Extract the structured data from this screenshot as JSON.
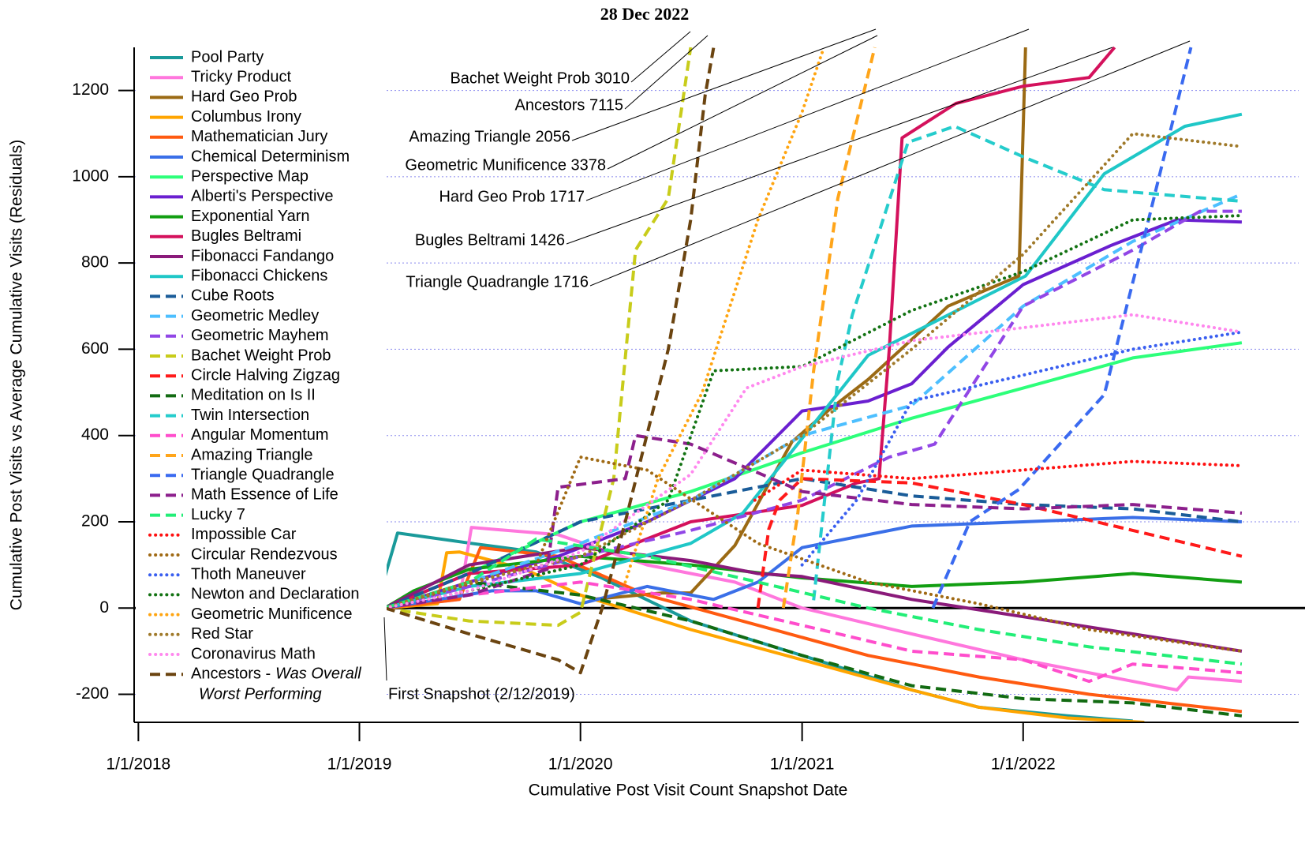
{
  "chart_data": {
    "type": "line",
    "title": "28 Dec 2022",
    "x_label": "Cumulative Post Visit Count Snapshot Date",
    "y_label": "Cumulative Post Visits vs Average Cumulative Visits (Residuals)",
    "xlim": [
      "2017-12-25",
      "2023-04-01"
    ],
    "ylim": [
      -265,
      1300
    ],
    "xticks": [
      {
        "value": "2018-01-01",
        "label": "1/1/2018"
      },
      {
        "value": "2019-01-01",
        "label": "1/1/2019"
      },
      {
        "value": "2020-01-01",
        "label": "1/1/2020"
      },
      {
        "value": "2021-01-01",
        "label": "1/1/2021"
      },
      {
        "value": "2022-01-01",
        "label": "1/1/2022"
      }
    ],
    "yticks": [
      -200,
      0,
      200,
      400,
      600,
      800,
      1000,
      1200
    ],
    "grid": true,
    "grid_color": "#8888ee",
    "legend": "upper left",
    "annotations": [
      {
        "text": "Bachet Weight Prob 3010"
      },
      {
        "text": "Ancestors 7115"
      },
      {
        "text": "Amazing Triangle 2056"
      },
      {
        "text": "Geometric Munificence 3378"
      },
      {
        "text": "Hard Geo Prob 1717"
      },
      {
        "text": "Bugles Beltrami 1426"
      },
      {
        "text": "Triangle Quadrangle 1716"
      },
      {
        "text": "First Snapshot (2/12/2019)"
      }
    ],
    "series": [
      {
        "name": "Pool Party",
        "color": "#1a9a9a",
        "dash": "solid",
        "x": [
          "2019-02-12",
          "2019-03-05",
          "2019-04-20",
          "2019-07-05",
          "2019-10-20",
          "2020-02-05",
          "2020-07-01",
          "2021-01-01",
          "2021-07-01",
          "2021-10-20",
          "2022-03-15",
          "2022-07-01"
        ],
        "values": [
          73,
          174,
          165,
          150,
          130,
          70,
          -30,
          -110,
          -190,
          -230,
          -250,
          -262
        ]
      },
      {
        "name": "Tricky Product",
        "color": "#ff77dd",
        "dash": "solid",
        "x": [
          "2019-02-12",
          "2019-06-15",
          "2019-07-05",
          "2019-11-25",
          "2020-04-20",
          "2020-09-12",
          "2021-01-01",
          "2021-07-01",
          "2022-01-01",
          "2022-07-01",
          "2022-09-12",
          "2022-10-01",
          "2022-12-28"
        ],
        "values": [
          0,
          20,
          187,
          170,
          100,
          60,
          0,
          -60,
          -120,
          -170,
          -190,
          -160,
          -170
        ]
      },
      {
        "name": "Hard Geo Prob",
        "color": "#9b6a14",
        "dash": "solid",
        "x": [
          "2020-01-20",
          "2020-05-15",
          "2020-07-01",
          "2020-09-12",
          "2020-12-15",
          "2021-02-15",
          "2021-04-20",
          "2021-08-30",
          "2021-12-25",
          "2022-01-05"
        ],
        "values": [
          20,
          35,
          35,
          145,
          385,
          460,
          530,
          700,
          770,
          1300
        ]
      },
      {
        "name": "Columbus Irony",
        "color": "#ffa500",
        "dash": "solid",
        "x": [
          "2019-02-12",
          "2019-05-10",
          "2019-05-25",
          "2019-06-15",
          "2019-10-01",
          "2020-01-01",
          "2020-07-01",
          "2021-01-01",
          "2021-07-01",
          "2021-10-20",
          "2022-03-15",
          "2022-07-20"
        ],
        "values": [
          0,
          10,
          128,
          130,
          90,
          30,
          -50,
          -120,
          -190,
          -230,
          -255,
          -265
        ]
      },
      {
        "name": "Mathematician Jury",
        "color": "#ff5a10",
        "dash": "solid",
        "x": [
          "2019-02-12",
          "2019-06-15",
          "2019-07-20",
          "2019-11-25",
          "2020-04-20",
          "2020-10-20",
          "2021-04-20",
          "2021-10-20",
          "2022-04-20",
          "2022-12-28"
        ],
        "values": [
          0,
          20,
          140,
          120,
          30,
          -40,
          -110,
          -160,
          -200,
          -240
        ]
      },
      {
        "name": "Chemical Determinism",
        "color": "#3a6fe8",
        "dash": "solid",
        "x": [
          "2019-02-12",
          "2019-08-08",
          "2019-10-20",
          "2020-01-01",
          "2020-04-20",
          "2020-08-08",
          "2020-10-20",
          "2021-01-01",
          "2021-07-01",
          "2022-01-01",
          "2022-07-01",
          "2022-12-28"
        ],
        "values": [
          0,
          40,
          40,
          10,
          50,
          20,
          60,
          140,
          190,
          200,
          210,
          200
        ]
      },
      {
        "name": "Perspective Map",
        "color": "#2dff7a",
        "dash": "solid",
        "x": [
          "2019-02-12",
          "2019-07-01",
          "2020-01-01",
          "2020-07-01",
          "2021-01-01",
          "2021-07-01",
          "2022-01-01",
          "2022-07-01",
          "2022-12-28"
        ],
        "values": [
          0,
          80,
          200,
          270,
          360,
          440,
          510,
          580,
          615
        ]
      },
      {
        "name": "Alberti's Perspective",
        "color": "#6a1fd0",
        "dash": "solid",
        "x": [
          "2019-02-12",
          "2019-07-01",
          "2019-11-25",
          "2020-04-20",
          "2020-09-12",
          "2021-01-01",
          "2021-04-20",
          "2021-07-01",
          "2021-08-30",
          "2022-01-01",
          "2022-05-25",
          "2022-09-12",
          "2022-12-28"
        ],
        "values": [
          0,
          60,
          120,
          200,
          300,
          457,
          480,
          520,
          605,
          750,
          840,
          900,
          895
        ]
      },
      {
        "name": "Exponential Yarn",
        "color": "#129e12",
        "dash": "solid",
        "x": [
          "2019-02-12",
          "2019-04-01",
          "2019-07-01",
          "2020-01-01",
          "2020-07-01",
          "2021-01-01",
          "2021-07-01",
          "2022-01-01",
          "2022-07-01",
          "2022-12-28"
        ],
        "values": [
          0,
          40,
          90,
          120,
          100,
          70,
          50,
          60,
          80,
          60
        ]
      },
      {
        "name": "Bugles Beltrami",
        "color": "#d4115c",
        "dash": "solid",
        "x": [
          "2019-02-12",
          "2019-07-01",
          "2020-01-01",
          "2020-07-01",
          "2021-01-01",
          "2021-04-01",
          "2021-05-08",
          "2021-05-25",
          "2021-06-15",
          "2021-09-12",
          "2022-01-01",
          "2022-04-20",
          "2022-06-01"
        ],
        "values": [
          0,
          80,
          100,
          200,
          238,
          290,
          300,
          600,
          1090,
          1170,
          1210,
          1230,
          1300
        ]
      },
      {
        "name": "Fibonacci Fandango",
        "color": "#8a1a7a",
        "dash": "solid",
        "x": [
          "2019-02-12",
          "2019-07-01",
          "2020-01-01",
          "2020-07-01",
          "2020-10-20",
          "2021-01-01",
          "2021-07-01",
          "2022-01-01",
          "2022-07-01",
          "2022-12-28"
        ],
        "values": [
          0,
          100,
          140,
          110,
          80,
          73,
          20,
          -20,
          -60,
          -100
        ]
      },
      {
        "name": "Fibonacci Chickens",
        "color": "#1fc7c7",
        "dash": "solid",
        "x": [
          "2019-02-12",
          "2019-07-01",
          "2020-01-01",
          "2020-07-01",
          "2020-09-25",
          "2021-04-20",
          "2022-01-05",
          "2022-05-15",
          "2022-09-25",
          "2022-12-28"
        ],
        "values": [
          0,
          50,
          80,
          150,
          220,
          586,
          770,
          1007,
          1117,
          1145
        ]
      },
      {
        "name": "Cube Roots",
        "color": "#1a5c99",
        "dash": "dashed",
        "x": [
          "2019-02-12",
          "2019-07-01",
          "2020-01-01",
          "2020-07-01",
          "2021-01-01",
          "2021-07-01",
          "2022-01-01",
          "2022-07-01",
          "2022-12-28"
        ],
        "values": [
          0,
          80,
          200,
          250,
          300,
          260,
          240,
          230,
          200
        ]
      },
      {
        "name": "Geometric Medley",
        "color": "#4dbfff",
        "dash": "dashed",
        "x": [
          "2019-02-12",
          "2019-07-01",
          "2020-01-01",
          "2020-07-01",
          "2021-01-01",
          "2021-07-01",
          "2022-01-01",
          "2022-07-01",
          "2022-12-28"
        ],
        "values": [
          0,
          60,
          150,
          250,
          400,
          470,
          700,
          850,
          960
        ]
      },
      {
        "name": "Geometric Mayhem",
        "color": "#9146e6",
        "dash": "dashed",
        "x": [
          "2019-02-12",
          "2019-07-01",
          "2020-01-01",
          "2020-07-01",
          "2021-01-01",
          "2021-05-25",
          "2021-08-08",
          "2021-10-20",
          "2022-01-01",
          "2022-07-01",
          "2022-10-20",
          "2022-12-28"
        ],
        "values": [
          0,
          50,
          120,
          180,
          250,
          350,
          380,
          540,
          700,
          830,
          920,
          920
        ]
      },
      {
        "name": "Bachet Weight Prob",
        "color": "#c8cc1a",
        "dash": "dashed",
        "x": [
          "2019-02-12",
          "2019-07-01",
          "2019-11-25",
          "2020-01-01",
          "2020-02-25",
          "2020-04-01",
          "2020-05-25",
          "2020-07-01"
        ],
        "values": [
          0,
          -30,
          -40,
          -10,
          300,
          830,
          950,
          1300
        ]
      },
      {
        "name": "Circle Halving Zigzag",
        "color": "#ff1a1a",
        "dash": "dashed",
        "x": [
          "2020-10-20",
          "2020-11-07",
          "2020-11-25",
          "2021-01-01",
          "2021-07-01",
          "2022-01-01",
          "2022-07-01",
          "2022-12-28"
        ],
        "values": [
          0,
          183,
          250,
          300,
          290,
          240,
          180,
          120
        ]
      },
      {
        "name": "Meditation on Is II",
        "color": "#126b12",
        "dash": "dashed",
        "x": [
          "2019-02-12",
          "2019-07-01",
          "2020-01-01",
          "2020-07-01",
          "2021-01-01",
          "2021-07-01",
          "2022-01-01",
          "2022-07-01",
          "2022-12-28"
        ],
        "values": [
          0,
          60,
          30,
          -30,
          -110,
          -180,
          -210,
          -220,
          -250
        ]
      },
      {
        "name": "Twin Intersection",
        "color": "#25cccc",
        "dash": "dashed",
        "x": [
          "2021-01-20",
          "2021-03-01",
          "2021-03-25",
          "2021-06-25",
          "2021-09-10",
          "2022-01-05",
          "2022-05-15",
          "2022-12-28"
        ],
        "values": [
          18,
          530,
          680,
          1080,
          1117,
          1044,
          970,
          943
        ]
      },
      {
        "name": "Angular Momentum",
        "color": "#ff4dcc",
        "dash": "dashed",
        "x": [
          "2019-02-12",
          "2019-07-01",
          "2020-01-01",
          "2020-07-01",
          "2021-01-01",
          "2021-07-01",
          "2022-01-01",
          "2022-04-20",
          "2022-07-01",
          "2022-12-28"
        ],
        "values": [
          0,
          30,
          60,
          20,
          -40,
          -100,
          -120,
          -170,
          -130,
          -150
        ]
      },
      {
        "name": "Amazing Triangle",
        "color": "#ffa51a",
        "dash": "dashed",
        "x": [
          "2020-12-01",
          "2020-12-25",
          "2021-01-20",
          "2021-03-01",
          "2021-05-01"
        ],
        "values": [
          0,
          220,
          550,
          950,
          1300
        ]
      },
      {
        "name": "Triangle Quadrangle",
        "color": "#3a6af0",
        "dash": "dashed",
        "x": [
          "2021-08-05",
          "2021-10-05",
          "2021-12-25",
          "2022-05-15",
          "2022-07-20",
          "2022-10-05"
        ],
        "values": [
          0,
          200,
          275,
          495,
          860,
          1300
        ]
      },
      {
        "name": "Math Essence of Life",
        "color": "#8c1f8c",
        "dash": "dashed",
        "x": [
          "2019-02-12",
          "2019-07-01",
          "2019-11-07",
          "2019-11-25",
          "2020-03-15",
          "2020-04-01",
          "2020-07-01",
          "2021-01-01",
          "2021-07-01",
          "2022-01-01",
          "2022-07-01",
          "2022-12-28"
        ],
        "values": [
          0,
          30,
          90,
          280,
          300,
          400,
          380,
          270,
          240,
          230,
          240,
          220
        ]
      },
      {
        "name": "Lucky 7",
        "color": "#22ee77",
        "dash": "dashed",
        "x": [
          "2019-02-12",
          "2019-07-01",
          "2019-10-20",
          "2020-04-20",
          "2020-10-20",
          "2021-04-20",
          "2021-10-20",
          "2022-04-20",
          "2022-12-28"
        ],
        "values": [
          0,
          60,
          160,
          120,
          60,
          0,
          -50,
          -90,
          -130
        ]
      },
      {
        "name": "Impossible Car",
        "color": "#ff1111",
        "dash": "dotted",
        "x": [
          "2020-10-15",
          "2021-01-01",
          "2021-07-01",
          "2022-01-01",
          "2022-07-01",
          "2022-12-28"
        ],
        "values": [
          250,
          320,
          300,
          320,
          340,
          330
        ]
      },
      {
        "name": "Circular Rendezvous",
        "color": "#a06a14",
        "dash": "dotted",
        "x": [
          "2019-02-12",
          "2019-10-20",
          "2020-01-01",
          "2020-04-20",
          "2020-10-20",
          "2021-04-20",
          "2021-10-20",
          "2022-04-20",
          "2022-12-28"
        ],
        "values": [
          0,
          100,
          350,
          320,
          150,
          60,
          10,
          -50,
          -100
        ]
      },
      {
        "name": "Thoth Maneuver",
        "color": "#3a5ff0",
        "dash": "dotted",
        "x": [
          "2021-01-01",
          "2021-04-01",
          "2021-07-01",
          "2022-01-01",
          "2022-07-01",
          "2022-12-28"
        ],
        "values": [
          100,
          250,
          480,
          540,
          600,
          640
        ]
      },
      {
        "name": "Newton and Declaration",
        "color": "#137313",
        "dash": "dotted",
        "x": [
          "2019-02-12",
          "2019-07-01",
          "2020-01-01",
          "2020-05-25",
          "2020-08-08",
          "2021-01-01",
          "2021-07-01",
          "2022-01-01",
          "2022-07-01",
          "2022-12-28"
        ],
        "values": [
          0,
          40,
          100,
          250,
          550,
          560,
          690,
          780,
          900,
          910
        ]
      },
      {
        "name": "Geometric Munificence",
        "color": "#ffa511",
        "dash": "dotted",
        "x": [
          "2020-03-15",
          "2020-05-08",
          "2020-07-20",
          "2020-10-20",
          "2021-01-01",
          "2021-02-06"
        ],
        "values": [
          60,
          300,
          500,
          900,
          1150,
          1300
        ]
      },
      {
        "name": "Red Star",
        "color": "#a07a2a",
        "dash": "dotted",
        "x": [
          "2019-02-12",
          "2019-07-01",
          "2020-01-01",
          "2020-07-01",
          "2021-01-01",
          "2021-07-01",
          "2022-01-01",
          "2022-07-01",
          "2022-12-28"
        ],
        "values": [
          0,
          60,
          120,
          250,
          400,
          600,
          820,
          1100,
          1070
        ]
      },
      {
        "name": "Coronavirus Math",
        "color": "#ff88ee",
        "dash": "dotted",
        "x": [
          "2019-02-12",
          "2019-07-01",
          "2020-01-01",
          "2020-07-01",
          "2020-10-01",
          "2021-01-01",
          "2021-07-01",
          "2022-01-01",
          "2022-07-01",
          "2022-12-28"
        ],
        "values": [
          0,
          40,
          130,
          310,
          510,
          560,
          620,
          650,
          680,
          640
        ]
      },
      {
        "name": "Ancestors -",
        "legend_note": [
          "Was Overall",
          "Worst Performing"
        ],
        "color": "#6b4410",
        "dash": "dashed",
        "x": [
          "2019-02-12",
          "2019-07-01",
          "2019-11-25",
          "2020-01-01",
          "2020-02-06",
          "2020-03-15",
          "2020-05-25",
          "2020-07-01",
          "2020-07-25",
          "2020-08-08"
        ],
        "values": [
          0,
          -60,
          -120,
          -150,
          0,
          200,
          600,
          900,
          1190,
          1300
        ]
      }
    ]
  }
}
